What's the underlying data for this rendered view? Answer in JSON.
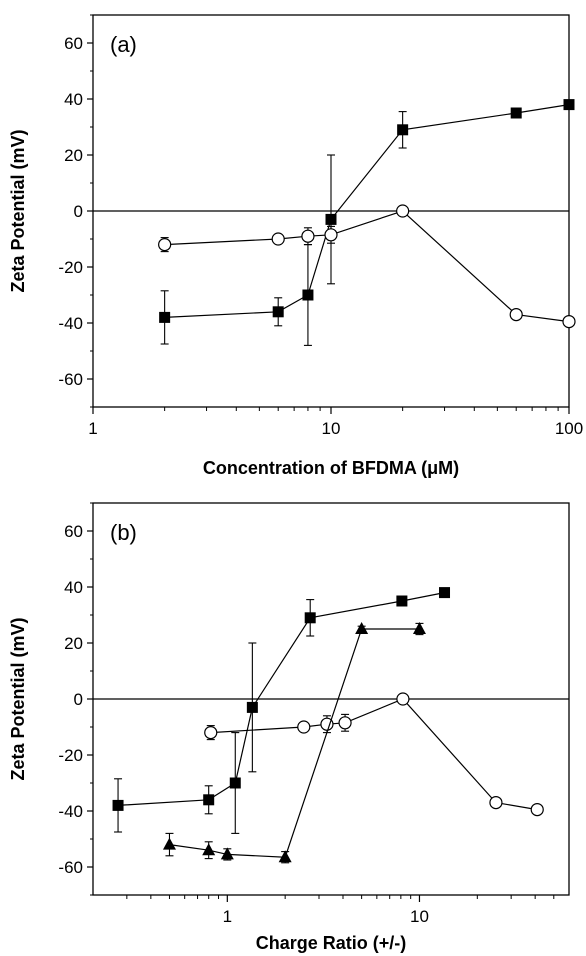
{
  "chart_data": [
    {
      "type": "scatter",
      "panel_label": "(a)",
      "xlabel": "Concentration of BFDMA (μM)",
      "ylabel": "Zeta Potential (mV)",
      "xscale": "log",
      "xlim": [
        1,
        100
      ],
      "ylim": [
        -70,
        70
      ],
      "xticks": [
        1,
        10,
        100
      ],
      "xtick_labels": [
        "1",
        "10",
        "100"
      ],
      "yticks": [
        -60,
        -40,
        -20,
        0,
        20,
        40,
        60
      ],
      "ytick_labels": [
        "-60",
        "-40",
        "-20",
        "0",
        "20",
        "40",
        "60"
      ],
      "reference_line": 0,
      "series": [
        {
          "marker": "filled-square",
          "color": "#000000",
          "points": [
            {
              "x": 2,
              "y": -38,
              "err": 9.5
            },
            {
              "x": 6,
              "y": -36,
              "err": 5
            },
            {
              "x": 8,
              "y": -30,
              "err": 18
            },
            {
              "x": 10,
              "y": -3,
              "err": 23
            },
            {
              "x": 20,
              "y": 29,
              "err": 6.5
            },
            {
              "x": 60,
              "y": 35,
              "err": 0
            },
            {
              "x": 100,
              "y": 38,
              "err": 0
            }
          ]
        },
        {
          "marker": "open-circle",
          "color": "#000000",
          "points": [
            {
              "x": 2,
              "y": -12,
              "err": 2.5
            },
            {
              "x": 6,
              "y": -10,
              "err": 1.5
            },
            {
              "x": 8,
              "y": -9,
              "err": 3
            },
            {
              "x": 10,
              "y": -8.5,
              "err": 3
            },
            {
              "x": 20,
              "y": 0,
              "err": 1.5
            },
            {
              "x": 60,
              "y": -37,
              "err": 1.5
            },
            {
              "x": 100,
              "y": -39.5,
              "err": 1.5
            }
          ]
        }
      ]
    },
    {
      "type": "scatter",
      "panel_label": "(b)",
      "xlabel": "Charge Ratio (+/-)",
      "ylabel": "Zeta Potential (mV)",
      "xscale": "log",
      "xlim": [
        0.2,
        60
      ],
      "ylim": [
        -70,
        70
      ],
      "xticks": [
        1,
        10
      ],
      "xtick_labels": [
        "1",
        "10"
      ],
      "yticks": [
        -60,
        -40,
        -20,
        0,
        20,
        40,
        60
      ],
      "ytick_labels": [
        "-60",
        "-40",
        "-20",
        "0",
        "20",
        "40",
        "60"
      ],
      "reference_line": 0,
      "series": [
        {
          "marker": "filled-square",
          "color": "#000000",
          "points": [
            {
              "x": 0.27,
              "y": -38,
              "err": 9.5
            },
            {
              "x": 0.8,
              "y": -36,
              "err": 5
            },
            {
              "x": 1.1,
              "y": -30,
              "err": 18
            },
            {
              "x": 1.35,
              "y": -3,
              "err": 23
            },
            {
              "x": 2.7,
              "y": 29,
              "err": 6.5
            },
            {
              "x": 8.1,
              "y": 35,
              "err": 0
            },
            {
              "x": 13.5,
              "y": 38,
              "err": 0
            }
          ]
        },
        {
          "marker": "open-circle",
          "color": "#000000",
          "points": [
            {
              "x": 0.82,
              "y": -12,
              "err": 2.5
            },
            {
              "x": 2.5,
              "y": -10,
              "err": 1.5
            },
            {
              "x": 3.3,
              "y": -9,
              "err": 3
            },
            {
              "x": 4.1,
              "y": -8.5,
              "err": 3
            },
            {
              "x": 8.2,
              "y": 0,
              "err": 1.5
            },
            {
              "x": 25,
              "y": -37,
              "err": 1.5
            },
            {
              "x": 41,
              "y": -39.5,
              "err": 1.5
            }
          ]
        },
        {
          "marker": "filled-triangle",
          "color": "#000000",
          "points": [
            {
              "x": 0.5,
              "y": -52,
              "err": 4
            },
            {
              "x": 0.8,
              "y": -54,
              "err": 3
            },
            {
              "x": 1.0,
              "y": -55.5,
              "err": 2
            },
            {
              "x": 2.0,
              "y": -56.5,
              "err": 2
            },
            {
              "x": 5.0,
              "y": 25,
              "err": 1
            },
            {
              "x": 10.0,
              "y": 25,
              "err": 2
            }
          ]
        }
      ]
    }
  ]
}
